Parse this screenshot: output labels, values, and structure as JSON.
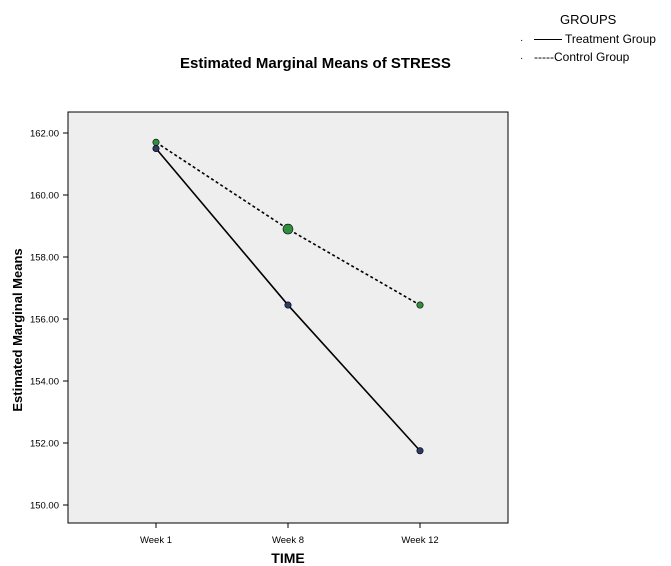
{
  "chart_data": {
    "type": "line",
    "title": "Estimated Marginal Means of STRESS",
    "xlabel": "TIME",
    "ylabel": "Estimated Marginal Means",
    "categories": [
      "Week 1",
      "Week 8",
      "Week 12"
    ],
    "y_ticks": [
      "150.00",
      "152.00",
      "154.00",
      "156.00",
      "158.00",
      "160.00",
      "162.00"
    ],
    "ylim": [
      149.3,
      163.0
    ],
    "grid": false,
    "legend_title": "GROUPS",
    "legend_placement": "top-right",
    "plot_background": "#eeeeee",
    "series": [
      {
        "name": "____ Treatment Group",
        "values": [
          161.5,
          156.45,
          151.75
        ],
        "line_style": "solid",
        "marker_color": "#2b3a66"
      },
      {
        "name": "-----Control Group",
        "values": [
          161.7,
          158.9,
          156.45
        ],
        "line_style": "dotted",
        "marker_color": "#2f8f3f"
      }
    ]
  },
  "legend": {
    "title": "GROUPS",
    "bullet": "·",
    "items": [
      "Treatment Group",
      "-----Control Group"
    ]
  }
}
